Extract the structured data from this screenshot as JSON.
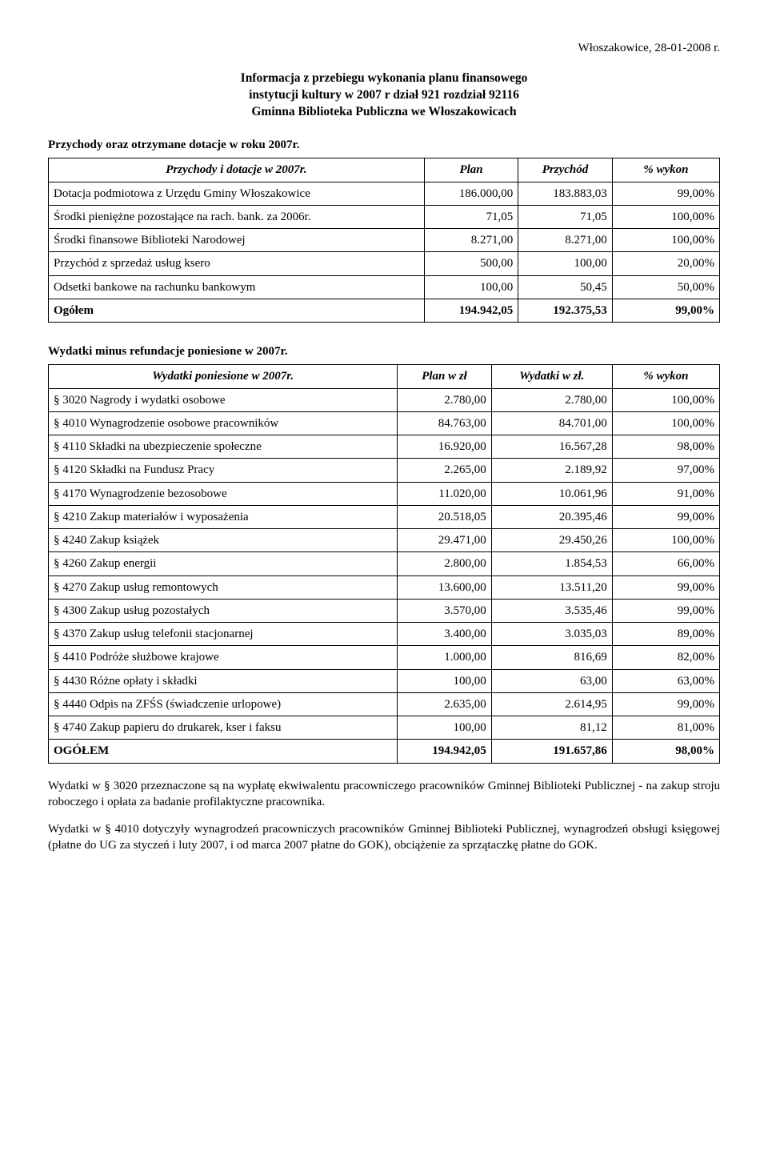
{
  "header_date": "Włoszakowice, 28-01-2008 r.",
  "title_line1": "Informacja z przebiegu wykonania planu finansowego",
  "title_line2": "instytucji kultury w  2007 r dział 921 rozdział 92116",
  "title_line3": "Gminna Biblioteka Publiczna we Włoszakowicach",
  "section1_title": "Przychody oraz otrzymane dotacje w roku 2007r.",
  "table1": {
    "headers": {
      "c1": "Przychody i dotacje w 2007r.",
      "c2": "Plan",
      "c3": "Przychód",
      "c4": "% wykon"
    },
    "rows": [
      {
        "label": "Dotacja podmiotowa z Urzędu Gminy Włoszakowice",
        "plan": "186.000,00",
        "value": "183.883,03",
        "pct": "99,00%",
        "bold": false
      },
      {
        "label": "Środki pieniężne  pozostające na rach.  bank. za 2006r.",
        "plan": "71,05",
        "value": "71,05",
        "pct": "100,00%",
        "bold": false
      },
      {
        "label": "Środki finansowe Biblioteki Narodowej",
        "plan": "8.271,00",
        "value": "8.271,00",
        "pct": "100,00%",
        "bold": false
      },
      {
        "label": "Przychód z sprzedaż usług ksero",
        "plan": "500,00",
        "value": "100,00",
        "pct": "20,00%",
        "bold": false
      },
      {
        "label": "Odsetki bankowe na rachunku bankowym",
        "plan": "100,00",
        "value": "50,45",
        "pct": "50,00%",
        "bold": false
      },
      {
        "label": "Ogółem",
        "plan": "194.942,05",
        "value": "192.375,53",
        "pct": "99,00%",
        "bold": true
      }
    ]
  },
  "section2_title": "Wydatki minus refundacje poniesione w 2007r.",
  "table2": {
    "headers": {
      "c1": "Wydatki poniesione w 2007r.",
      "c2": "Plan w zł",
      "c3": "Wydatki  w zł.",
      "c4": "% wykon"
    },
    "rows": [
      {
        "label": "§ 3020 Nagrody i wydatki osobowe",
        "plan": "2.780,00",
        "value": "2.780,00",
        "pct": "100,00%",
        "bold": false
      },
      {
        "label": "§ 4010 Wynagrodzenie osobowe pracowników",
        "plan": "84.763,00",
        "value": "84.701,00",
        "pct": "100,00%",
        "bold": false
      },
      {
        "label": "§ 4110 Składki na ubezpieczenie społeczne",
        "plan": "16.920,00",
        "value": "16.567,28",
        "pct": "98,00%",
        "bold": false
      },
      {
        "label": "§ 4120 Składki na Fundusz Pracy",
        "plan": "2.265,00",
        "value": "2.189,92",
        "pct": "97,00%",
        "bold": false
      },
      {
        "label": "§ 4170 Wynagrodzenie bezosobowe",
        "plan": "11.020,00",
        "value": "10.061,96",
        "pct": "91,00%",
        "bold": false
      },
      {
        "label": "§ 4210 Zakup materiałów i wyposażenia",
        "plan": "20.518,05",
        "value": "20.395,46",
        "pct": "99,00%",
        "bold": false
      },
      {
        "label": "§ 4240 Zakup książek",
        "plan": "29.471,00",
        "value": "29.450,26",
        "pct": "100,00%",
        "bold": false
      },
      {
        "label": "§ 4260 Zakup energii",
        "plan": "2.800,00",
        "value": "1.854,53",
        "pct": "66,00%",
        "bold": false
      },
      {
        "label": "§ 4270 Zakup usług remontowych",
        "plan": "13.600,00",
        "value": "13.511,20",
        "pct": "99,00%",
        "bold": false
      },
      {
        "label": "§ 4300 Zakup usług pozostałych",
        "plan": "3.570,00",
        "value": "3.535,46",
        "pct": "99,00%",
        "bold": false
      },
      {
        "label": "§ 4370 Zakup usług telefonii stacjonarnej",
        "plan": "3.400,00",
        "value": "3.035,03",
        "pct": "89,00%",
        "bold": false
      },
      {
        "label": "§ 4410 Podróże służbowe krajowe",
        "plan": "1.000,00",
        "value": "816,69",
        "pct": "82,00%",
        "bold": false
      },
      {
        "label": "§ 4430 Różne opłaty i składki",
        "plan": "100,00",
        "value": "63,00",
        "pct": "63,00%",
        "bold": false
      },
      {
        "label": "§ 4440 Odpis na ZFŚS (świadczenie urlopowe)",
        "plan": "2.635,00",
        "value": "2.614,95",
        "pct": "99,00%",
        "bold": false
      },
      {
        "label": "§ 4740 Zakup papieru do drukarek, kser i faksu",
        "plan": "100,00",
        "value": "81,12",
        "pct": "81,00%",
        "bold": false
      },
      {
        "label": "OGÓŁEM",
        "plan": "194.942,05",
        "value": "191.657,86",
        "pct": "98,00%",
        "bold": true
      }
    ]
  },
  "para1": "Wydatki w § 3020 przeznaczone są na wypłatę ekwiwalentu pracowniczego pracowników Gminnej Biblioteki Publicznej -  na zakup  stroju  roboczego i opłata za badanie profilaktyczne pracownika.",
  "para2": "Wydatki  w  § 4010 dotyczyły wynagrodzeń pracowniczych pracowników Gminnej Biblioteki Publicznej,  wynagrodzeń obsługi księgowej (płatne do UG za styczeń i luty 2007, i od marca 2007 płatne do GOK), obciążenie za sprzątaczkę płatne do GOK."
}
